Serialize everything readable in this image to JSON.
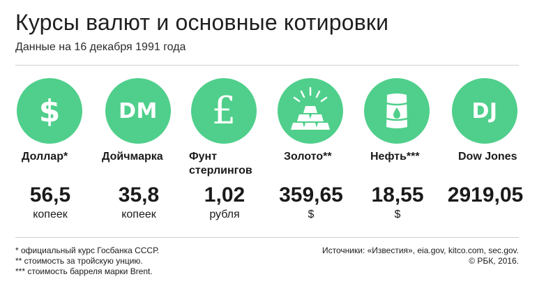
{
  "header": {
    "title": "Курсы валют и основные котировки",
    "subtitle": "Данные на 16 декабря 1991 года"
  },
  "accent_color": "#4fcf8b",
  "items": [
    {
      "icon": "dollar-sign-icon",
      "symbol": "$",
      "label": "Доллар*",
      "value": "56,5",
      "unit": "копеек"
    },
    {
      "icon": "dm-text-icon",
      "symbol": "DM",
      "label": "Дойчмарка",
      "value": "35,8",
      "unit": "копеек"
    },
    {
      "icon": "pound-sign-icon",
      "symbol": "£",
      "label": "Фунт стерлингов",
      "value": "1,02",
      "unit": "рубля"
    },
    {
      "icon": "gold-bars-icon",
      "symbol": "",
      "label": "Золото**",
      "value": "359,65",
      "unit": "$"
    },
    {
      "icon": "oil-barrel-icon",
      "symbol": "",
      "label": "Нефть***",
      "value": "18,55",
      "unit": "$"
    },
    {
      "icon": "dj-text-icon",
      "symbol": "DJ",
      "label": "Dow Jones",
      "value": "2919,05",
      "unit": ""
    }
  ],
  "footnotes": [
    "* официальный курс Госбанка СССР.",
    "** стоимость за тройскую унцию.",
    "*** стоимость барреля марки Brent."
  ],
  "sources": {
    "text": "Источники: «Известия», eia.gov, kitco.com, sec.gov.",
    "copyright": "© РБК, 2016."
  }
}
